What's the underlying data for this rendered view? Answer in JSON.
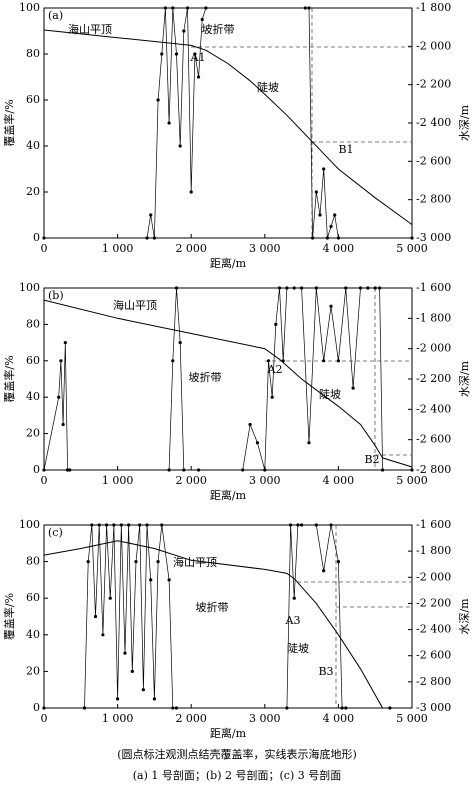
{
  "chart_data": [
    {
      "type": "line",
      "title": "(a)",
      "xlabel": "距离/m",
      "ylabel": "覆盖率/%",
      "y2label": "水深/m",
      "xlim": [
        0,
        5000
      ],
      "xticks": [
        0,
        {
          "value": 1000,
          "label": "1 000"
        },
        {
          "value": 2000,
          "label": "2 000"
        },
        {
          "value": 3000,
          "label": "3 000"
        },
        {
          "value": 4000,
          "label": "4 000"
        },
        {
          "value": 5000,
          "label": "5 000"
        }
      ],
      "ylim": [
        0,
        100
      ],
      "yticks": [
        0,
        20,
        40,
        60,
        80,
        100
      ],
      "y2lim": [
        -3000,
        -1800
      ],
      "y2ticks": [
        {
          "value": -1800,
          "label": "-1 800"
        },
        {
          "value": -2000,
          "label": "-2 000"
        },
        {
          "value": -2200,
          "label": "-2 200"
        },
        {
          "value": -2400,
          "label": "-2 400"
        },
        {
          "value": -2600,
          "label": "-2 600"
        },
        {
          "value": -2800,
          "label": "-2 800"
        },
        {
          "value": -3000,
          "label": "-3 000"
        }
      ],
      "annotations": [
        "海山平顶",
        "坡折带",
        "A1",
        "陡坡",
        "B1"
      ],
      "series": [
        {
          "color": "#000000",
          "marker": "circle",
          "x": [
            0,
            1400,
            1450,
            1500,
            1550,
            1600,
            1650,
            1700,
            1750,
            1800,
            1850,
            1900,
            1950,
            2000,
            2050,
            2100,
            2150,
            2200,
            3550,
            3600,
            3650,
            3700,
            3750,
            3800,
            3850,
            3900,
            3950,
            4000,
            5000
          ],
          "values": [
            0,
            0,
            10,
            0,
            60,
            80,
            100,
            50,
            100,
            80,
            40,
            90,
            100,
            20,
            80,
            70,
            95,
            100,
            100,
            100,
            0,
            20,
            10,
            30,
            0,
            5,
            10,
            0,
            0
          ]
        },
        {
          "color": "#000000",
          "axis": "y2",
          "x": [
            0,
            500,
            1000,
            1500,
            2000,
            2200,
            2500,
            2800,
            3000,
            3300,
            3600,
            3800,
            4000,
            4500,
            5000
          ],
          "values": [
            -1915,
            -1935,
            -1955,
            -1975,
            -1995,
            -2020,
            -2090,
            -2180,
            -2250,
            -2360,
            -2480,
            -2560,
            -2640,
            -2790,
            -2930
          ]
        }
      ]
    },
    {
      "type": "line",
      "title": "(b)",
      "xlabel": "距离/m",
      "ylabel": "覆盖率/%",
      "y2label": "水深/m",
      "xlim": [
        0,
        5000
      ],
      "xticks": [
        0,
        {
          "value": 1000,
          "label": "1 000"
        },
        {
          "value": 2000,
          "label": "2 000"
        },
        {
          "value": 3000,
          "label": "3 000"
        },
        {
          "value": 4000,
          "label": "4 000"
        },
        {
          "value": 5000,
          "label": "5 000"
        }
      ],
      "ylim": [
        0,
        100
      ],
      "yticks": [
        0,
        20,
        40,
        60,
        80,
        100
      ],
      "y2lim": [
        -2800,
        -1600
      ],
      "y2ticks": [
        {
          "value": -1600,
          "label": "-1 600"
        },
        {
          "value": -1800,
          "label": "-1 800"
        },
        {
          "value": -2000,
          "label": "-2 000"
        },
        {
          "value": -2200,
          "label": "-2 200"
        },
        {
          "value": -2400,
          "label": "-2 400"
        },
        {
          "value": -2600,
          "label": "-2 600"
        },
        {
          "value": -2800,
          "label": "-2 800"
        }
      ],
      "annotations": [
        "海山平顶",
        "坡折带",
        "A2",
        "陡坡",
        "B2"
      ],
      "series": [
        {
          "color": "#000000",
          "marker": "circle",
          "x": [
            0,
            200,
            230,
            260,
            290,
            320,
            350,
            1700,
            1750,
            1800,
            1850,
            1900,
            2100,
            2700,
            2800,
            2900,
            3000,
            3050,
            3100,
            3150,
            3200,
            3250,
            3300,
            3400,
            3500,
            3600,
            3700,
            3800,
            3900,
            4000,
            4100,
            4200,
            4300,
            4400,
            4500,
            4560,
            4600,
            5000
          ],
          "values": [
            0,
            40,
            60,
            25,
            70,
            0,
            0,
            0,
            60,
            100,
            70,
            0,
            0,
            0,
            25,
            15,
            0,
            60,
            40,
            80,
            100,
            60,
            100,
            100,
            100,
            15,
            100,
            60,
            90,
            60,
            100,
            45,
            100,
            100,
            100,
            100,
            0,
            0
          ]
        },
        {
          "color": "#000000",
          "axis": "y2",
          "x": [
            0,
            1000,
            2000,
            3000,
            3200,
            3500,
            4000,
            4300,
            4500,
            4600,
            5000
          ],
          "values": [
            -1680,
            -1800,
            -1900,
            -2000,
            -2070,
            -2200,
            -2380,
            -2500,
            -2640,
            -2720,
            -2780
          ]
        }
      ]
    },
    {
      "type": "line",
      "title": "(c)",
      "xlabel": "距离/m",
      "ylabel": "覆盖率/%",
      "y2label": "水深/m",
      "xlim": [
        0,
        5000
      ],
      "xticks": [
        0,
        {
          "value": 1000,
          "label": "1 000"
        },
        {
          "value": 2000,
          "label": "2 000"
        },
        {
          "value": 3000,
          "label": "3 000"
        },
        {
          "value": 4000,
          "label": "4 000"
        },
        {
          "value": 5000,
          "label": "5 000"
        }
      ],
      "ylim": [
        0,
        100
      ],
      "yticks": [
        0,
        20,
        40,
        60,
        80,
        100
      ],
      "y2lim": [
        -3000,
        -1600
      ],
      "y2ticks": [
        {
          "value": -1600,
          "label": "-1 600"
        },
        {
          "value": -1800,
          "label": "-1 800"
        },
        {
          "value": -2000,
          "label": "-2 000"
        },
        {
          "value": -2200,
          "label": "-2 200"
        },
        {
          "value": -2400,
          "label": "-2 400"
        },
        {
          "value": -2600,
          "label": "-2 600"
        },
        {
          "value": -2800,
          "label": "-2 800"
        },
        {
          "value": -3000,
          "label": "-3 000"
        }
      ],
      "annotations": [
        "海山平顶",
        "坡折带",
        "A3",
        "陡坡",
        "B3"
      ],
      "series": [
        {
          "color": "#000000",
          "marker": "circle",
          "x": [
            0,
            550,
            600,
            650,
            700,
            750,
            800,
            850,
            900,
            950,
            1000,
            1050,
            1100,
            1150,
            1200,
            1250,
            1300,
            1350,
            1400,
            1450,
            1500,
            1550,
            1600,
            1700,
            1750,
            1800,
            3300,
            3350,
            3400,
            3450,
            3500,
            3700,
            3800,
            3900,
            4000,
            4050,
            4100,
            4700
          ],
          "values": [
            0,
            0,
            80,
            100,
            50,
            100,
            40,
            100,
            60,
            100,
            5,
            100,
            30,
            100,
            20,
            80,
            100,
            10,
            100,
            70,
            5,
            80,
            100,
            70,
            0,
            0,
            0,
            100,
            60,
            100,
            100,
            100,
            75,
            100,
            80,
            0,
            0,
            0
          ]
        },
        {
          "color": "#000000",
          "axis": "y2",
          "x": [
            0,
            500,
            1000,
            1500,
            2000,
            3000,
            3300,
            3400,
            3700,
            4000,
            4300,
            4600
          ],
          "values": [
            -1830,
            -1780,
            -1720,
            -1780,
            -1870,
            -1940,
            -1970,
            -2010,
            -2200,
            -2440,
            -2700,
            -3000
          ]
        }
      ]
    }
  ],
  "notes": {
    "line1": "(圆点标注观测点结壳覆盖率，实线表示海底地形)",
    "line2": "(a) 1 号剖面；(b) 2 号剖面；(c) 3 号剖面"
  }
}
